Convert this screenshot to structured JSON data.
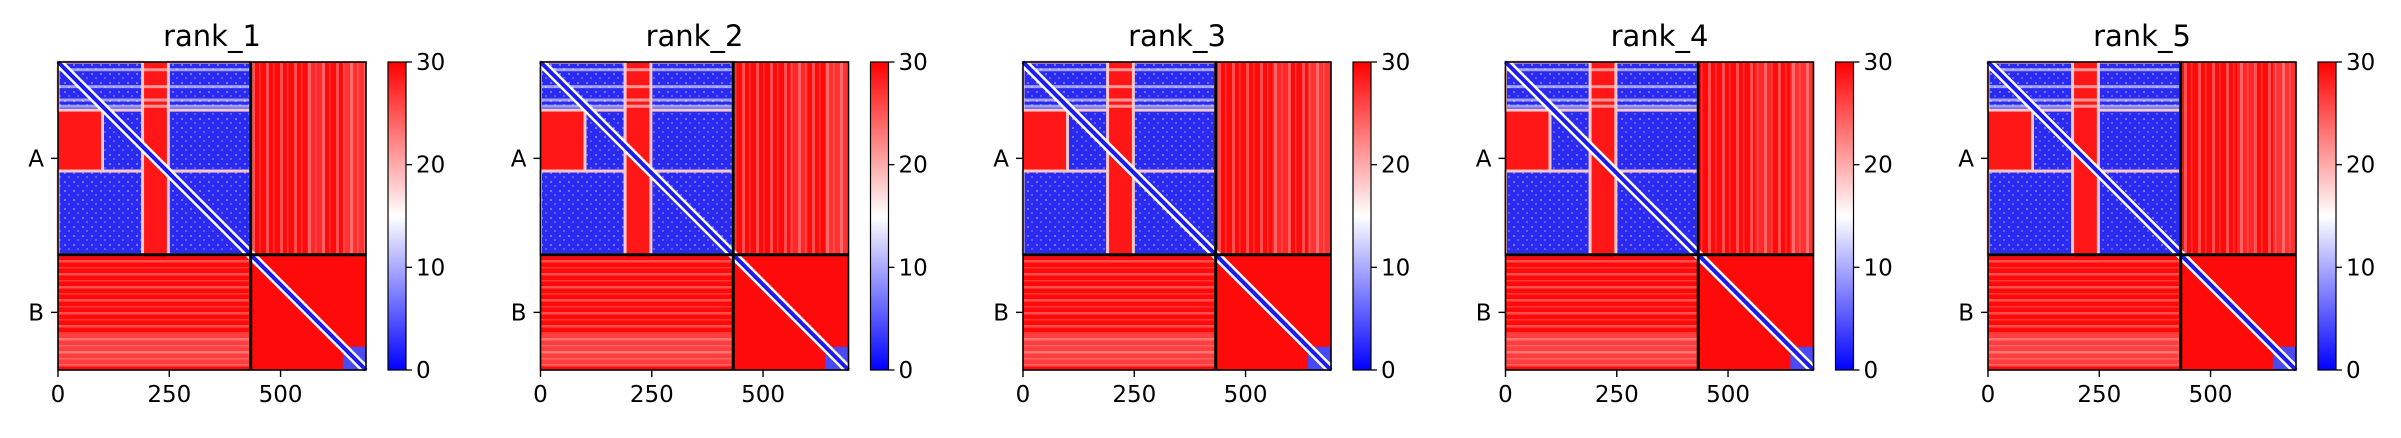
{
  "chart_data": [
    {
      "type": "heatmap",
      "title": "rank_1",
      "xticks": [
        "0",
        "250",
        "500"
      ],
      "yticks": [
        "A",
        "B"
      ],
      "xlim": [
        0,
        692
      ],
      "chain_break": 433,
      "colorbar": {
        "ticks": [
          "0",
          "10",
          "20",
          "30"
        ],
        "range": [
          0,
          30
        ],
        "colors": [
          "#0000ff",
          "#ffffff",
          "#ff0000"
        ]
      }
    },
    {
      "type": "heatmap",
      "title": "rank_2",
      "xticks": [
        "0",
        "250",
        "500"
      ],
      "yticks": [
        "A",
        "B"
      ],
      "xlim": [
        0,
        692
      ],
      "chain_break": 433,
      "colorbar": {
        "ticks": [
          "0",
          "10",
          "20",
          "30"
        ],
        "range": [
          0,
          30
        ],
        "colors": [
          "#0000ff",
          "#ffffff",
          "#ff0000"
        ]
      }
    },
    {
      "type": "heatmap",
      "title": "rank_3",
      "xticks": [
        "0",
        "250",
        "500"
      ],
      "yticks": [
        "A",
        "B"
      ],
      "xlim": [
        0,
        692
      ],
      "chain_break": 433,
      "colorbar": {
        "ticks": [
          "0",
          "10",
          "20",
          "30"
        ],
        "range": [
          0,
          30
        ],
        "colors": [
          "#0000ff",
          "#ffffff",
          "#ff0000"
        ]
      }
    },
    {
      "type": "heatmap",
      "title": "rank_4",
      "xticks": [
        "0",
        "250",
        "500"
      ],
      "yticks": [
        "A",
        "B"
      ],
      "xlim": [
        0,
        692
      ],
      "chain_break": 433,
      "colorbar": {
        "ticks": [
          "0",
          "10",
          "20",
          "30"
        ],
        "range": [
          0,
          30
        ],
        "colors": [
          "#0000ff",
          "#ffffff",
          "#ff0000"
        ]
      }
    },
    {
      "type": "heatmap",
      "title": "rank_5",
      "xticks": [
        "0",
        "250",
        "500"
      ],
      "yticks": [
        "A",
        "B"
      ],
      "xlim": [
        0,
        692
      ],
      "chain_break": 433,
      "colorbar": {
        "ticks": [
          "0",
          "10",
          "20",
          "30"
        ],
        "range": [
          0,
          30
        ],
        "colors": [
          "#0000ff",
          "#ffffff",
          "#ff0000"
        ]
      }
    }
  ]
}
